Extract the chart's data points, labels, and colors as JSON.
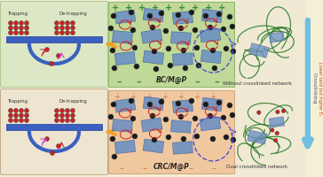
{
  "bg_top": "#f0f0d8",
  "bg_bot": "#f5ecd8",
  "top_left_bg": "#dce8c0",
  "top_center_bg": "#c8daa0",
  "bottom_left_bg": "#f0e8d8",
  "bottom_center_bg": "#f0d0b0",
  "right_bg": "#f0ead8",
  "mxene_color": "#6a8fc4",
  "mxene_edge": "#4a6a9a",
  "dopamine_color": "#1a1a1a",
  "red_color": "#cc2222",
  "purple_color": "#cc44cc",
  "green_color": "#2a7a2a",
  "blue_bar_color": "#3a60c0",
  "yellow_arrow": "#f0a020",
  "dashed_arrow_color": "#6060cc",
  "plus_color_top": "#3a8a3a",
  "plus_color_bot": "#c06030",
  "minus_color_top": "#3a8a3a",
  "minus_color_bot": "#c06030",
  "crosslink_arrow": "#70c0e0",
  "label_rc": "RC/M@P",
  "label_crc": "CRC/M@P",
  "label_without": "Without crosslinked network",
  "label_dual": "Dual crosslinked network",
  "label_crosslinking": "Crosslinking",
  "label_lower": "Lower tanδ but higher Eₙ",
  "label_trapping": "Trapping",
  "label_detrapping": "De-trapping",
  "figsize": [
    3.64,
    2.0
  ],
  "dpi": 100
}
